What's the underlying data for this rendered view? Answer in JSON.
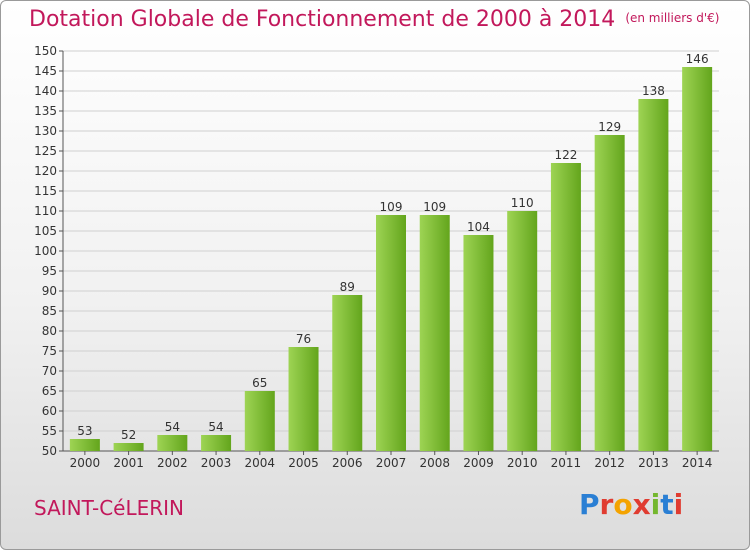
{
  "chart_title": "Dotation Globale de Fonctionnement de 2000 à 2014",
  "chart_subtitle": "(en milliers d'€)",
  "commune": "SAINT-CéLERIN",
  "logo_text": "Proxiti",
  "logo_colors": [
    "#2a7fd4",
    "#e03c31",
    "#f4a300",
    "#e03c31",
    "#74b72e",
    "#2a7fd4",
    "#e03c31"
  ],
  "colors": {
    "bar_light": "#9ed454",
    "bar_dark": "#63a51c",
    "title": "#c2185b",
    "grid": "#d0d0d0"
  },
  "chart_data": {
    "type": "bar",
    "categories": [
      "2000",
      "2001",
      "2002",
      "2003",
      "2004",
      "2005",
      "2006",
      "2007",
      "2008",
      "2009",
      "2010",
      "2011",
      "2012",
      "2013",
      "2014"
    ],
    "values": [
      53,
      52,
      54,
      54,
      65,
      76,
      89,
      109,
      109,
      104,
      110,
      122,
      129,
      138,
      146
    ],
    "ylim": [
      50,
      150
    ],
    "ytick_step": 5,
    "grid": true,
    "data_labels": true
  }
}
